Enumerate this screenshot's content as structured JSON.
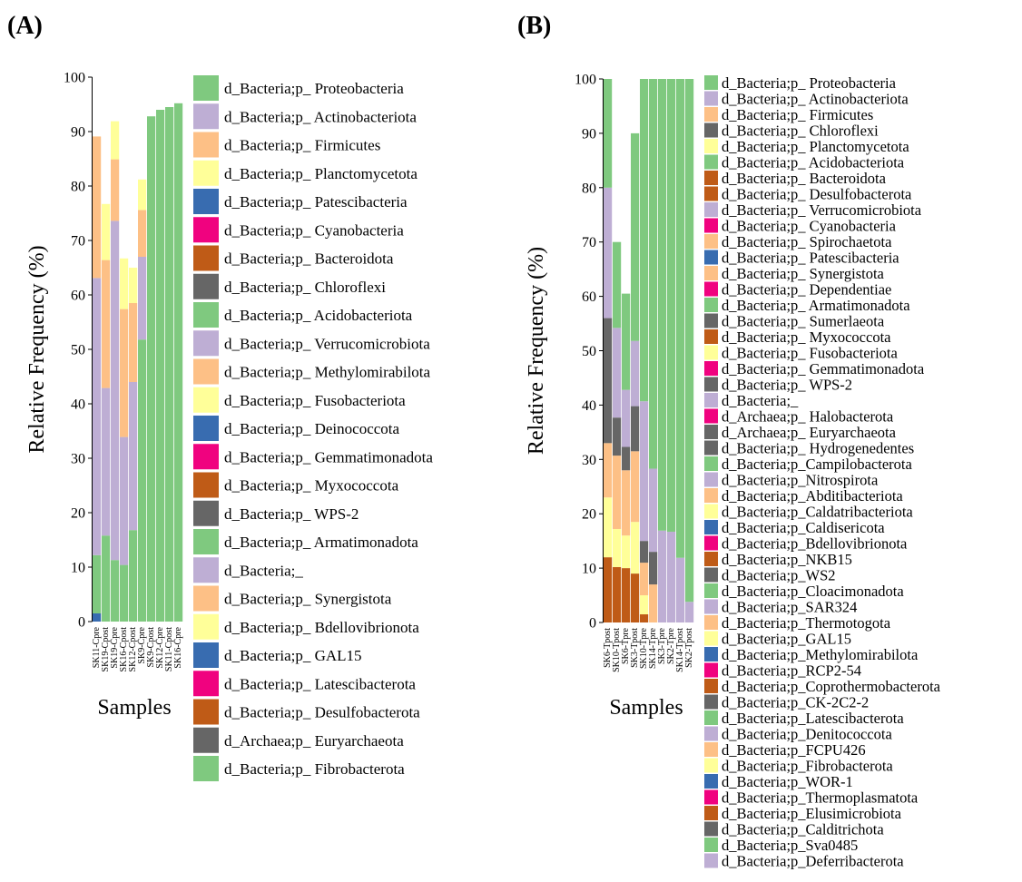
{
  "palette": [
    "#7fc97f",
    "#beaed4",
    "#fdc086",
    "#ffff99",
    "#386cb0",
    "#f0027f",
    "#bf5b17",
    "#666666"
  ],
  "chart_data": [
    {
      "panel_label": "(A)",
      "type": "bar",
      "stacked": true,
      "ylabel": "Relative Frequency (%)",
      "xlabel": "Samples",
      "ylim": [
        0,
        100
      ],
      "yticks": [
        "0",
        "10",
        "20",
        "30",
        "40",
        "50",
        "60",
        "70",
        "80",
        "90",
        "100"
      ],
      "categories": [
        "SK11-Cpre",
        "SK19-Cpost",
        "SK19-Cpre",
        "SK16-Cpost",
        "SK12-Cpost",
        "SK9-Cpre",
        "SK9-Cpost",
        "SK12-Cpre",
        "SK11-Cpost",
        "SK16-Cpre"
      ],
      "series": [
        {
          "name": "d_Bacteria;p_ Patescibacteria",
          "values": [
            1.5,
            0,
            0,
            0,
            0,
            0,
            0,
            0,
            0,
            0
          ]
        },
        {
          "name": "d_Bacteria;p_ Proteobacteria",
          "values": [
            10.7,
            15.8,
            11.3,
            10.4,
            16.8,
            51.8,
            92.8,
            94,
            94.5,
            95.2
          ]
        },
        {
          "name": "d_Bacteria;p_ Actinobacteriota",
          "values": [
            50.9,
            27.1,
            62.3,
            23.5,
            27.2,
            15.2,
            0,
            0,
            0,
            0
          ]
        },
        {
          "name": "d_Bacteria;p_ Firmicutes",
          "values": [
            26,
            23.5,
            11.3,
            23.5,
            14.5,
            8.6,
            0,
            0,
            0,
            0
          ]
        },
        {
          "name": "d_Bacteria;p_ Planctomycetota",
          "values": [
            0,
            10.3,
            7,
            9.3,
            6.5,
            5.6,
            0,
            0,
            0,
            0
          ]
        }
      ],
      "legend": [
        "d_Bacteria;p_ Proteobacteria",
        "d_Bacteria;p_ Actinobacteriota",
        "d_Bacteria;p_ Firmicutes",
        "d_Bacteria;p_ Planctomycetota",
        "d_Bacteria;p_ Patescibacteria",
        "d_Bacteria;p_ Cyanobacteria",
        "d_Bacteria;p_ Bacteroidota",
        "d_Bacteria;p_ Chloroflexi",
        "d_Bacteria;p_ Acidobacteriota",
        "d_Bacteria;p_ Verrucomicrobiota",
        "d_Bacteria;p_ Methylomirabilota",
        "d_Bacteria;p_ Fusobacteriota",
        "d_Bacteria;p_ Deinococcota",
        "d_Bacteria;p_ Gemmatimonadota",
        "d_Bacteria;p_ Myxococcota",
        "d_Bacteria;p_ WPS-2",
        "d_Bacteria;p_ Armatimonadota",
        "d_Bacteria;_",
        "d_Bacteria;p_ Synergistota",
        "d_Bacteria;p_ Bdellovibrionota",
        "d_Bacteria;p_ GAL15",
        "d_Bacteria;p_ Latescibacterota",
        "d_Bacteria;p_ Desulfobacterota",
        "d_Archaea;p_ Euryarchaeota",
        "d_Bacteria;p_ Fibrobacterota"
      ]
    },
    {
      "panel_label": "(B)",
      "type": "bar",
      "stacked": true,
      "ylabel": "Relative Frequency (%)",
      "xlabel": "Samples",
      "ylim": [
        0,
        100
      ],
      "yticks": [
        "0",
        "10",
        "20",
        "30",
        "40",
        "50",
        "60",
        "70",
        "80",
        "90",
        "100"
      ],
      "categories": [
        "SK6-Tpost",
        "SK10-Tpost",
        "SK6-Tpre",
        "SK3-Tpost",
        "SK10-Tpre",
        "SK14-Tpre",
        "SK3-Tpre",
        "SK2-Tpre",
        "SK14-Tpost",
        "SK2-Tpost"
      ],
      "series": [
        {
          "name": "d_Bacteria;p_ Bacteroidota",
          "values": [
            12,
            10.2,
            10,
            9,
            1.5,
            0,
            0,
            0,
            0,
            0
          ]
        },
        {
          "name": "d_Bacteria;p_ Planctomycetota",
          "values": [
            11,
            7,
            6,
            9.5,
            3.5,
            0,
            0,
            0,
            0,
            0
          ]
        },
        {
          "name": "d_Bacteria;p_ Firmicutes",
          "values": [
            10,
            13.5,
            12,
            13,
            6,
            7,
            0,
            0,
            0,
            0
          ]
        },
        {
          "name": "d_Bacteria;p_ Chloroflexi",
          "values": [
            23,
            7,
            4.3,
            8.3,
            4,
            6,
            0,
            0,
            0,
            0
          ]
        },
        {
          "name": "d_Bacteria;p_ Actinobacteriota",
          "values": [
            24,
            16.5,
            10.5,
            12,
            25.7,
            15.3,
            16.9,
            16.7,
            11.9,
            3.8
          ]
        },
        {
          "name": "d_Bacteria;p_ Proteobacteria",
          "values": [
            20,
            15.8,
            17.7,
            38.2,
            59.3,
            71.7,
            83.1,
            83.3,
            88.1,
            96.2
          ]
        }
      ],
      "legend": [
        "d_Bacteria;p_ Proteobacteria",
        "d_Bacteria;p_ Actinobacteriota",
        "d_Bacteria;p_ Firmicutes",
        "d_Bacteria;p_ Chloroflexi",
        "d_Bacteria;p_ Planctomycetota",
        "d_Bacteria;p_ Acidobacteriota",
        "d_Bacteria;p_ Bacteroidota",
        "d_Bacteria;p_ Desulfobacterota",
        "d_Bacteria;p_ Verrucomicrobiota",
        "d_Bacteria;p_ Cyanobacteria",
        "d_Bacteria;p_ Spirochaetota",
        "d_Bacteria;p_ Patescibacteria",
        "d_Bacteria;p_ Synergistota",
        "d_Bacteria;p_ Dependentiae",
        "d_Bacteria;p_ Armatimonadota",
        "d_Bacteria;p_ Sumerlaeota",
        "d_Bacteria;p_ Myxococcota",
        "d_Bacteria;p_ Fusobacteriota",
        "d_Bacteria;p_ Gemmatimonadota",
        "d_Bacteria;p_ WPS-2",
        "d_Bacteria;_",
        "d_Archaea;p_ Halobacterota",
        "d_Archaea;p_ Euryarchaeota",
        "d_Bacteria;p_ Hydrogenedentes",
        "d_Bacteria;p_Campilobacterota",
        "d_Bacteria;p_Nitrospirota",
        "d_Bacteria;p_Abditibacteriota",
        "d_Bacteria;p_Caldatribacteriota",
        "d_Bacteria;p_Caldisericota",
        "d_Bacteria;p_Bdellovibrionota",
        "d_Bacteria;p_NKB15",
        "d_Bacteria;p_WS2",
        "d_Bacteria;p_Cloacimonadota",
        "d_Bacteria;p_SAR324",
        "d_Bacteria;p_Thermotogota",
        "d_Bacteria;p_GAL15",
        "d_Bacteria;p_Methylomirabilota",
        "d_Bacteria;p_RCP2-54",
        "d_Bacteria;p_Coprothermobacterota",
        "d_Bacteria;p_CK-2C2-2",
        "d_Bacteria;p_Latescibacterota",
        "d_Bacteria;p_Denitococcota",
        "d_Bacteria;p_FCPU426",
        "d_Bacteria;p_Fibrobacterota",
        "d_Bacteria;p_WOR-1",
        "d_Bacteria;p_Thermoplasmatota",
        "d_Bacteria;p_Elusimicrobiota",
        "d_Bacteria;p_Calditrichota",
        "d_Bacteria;p_Sva0485",
        "d_Bacteria;p_Deferribacterota"
      ]
    }
  ]
}
